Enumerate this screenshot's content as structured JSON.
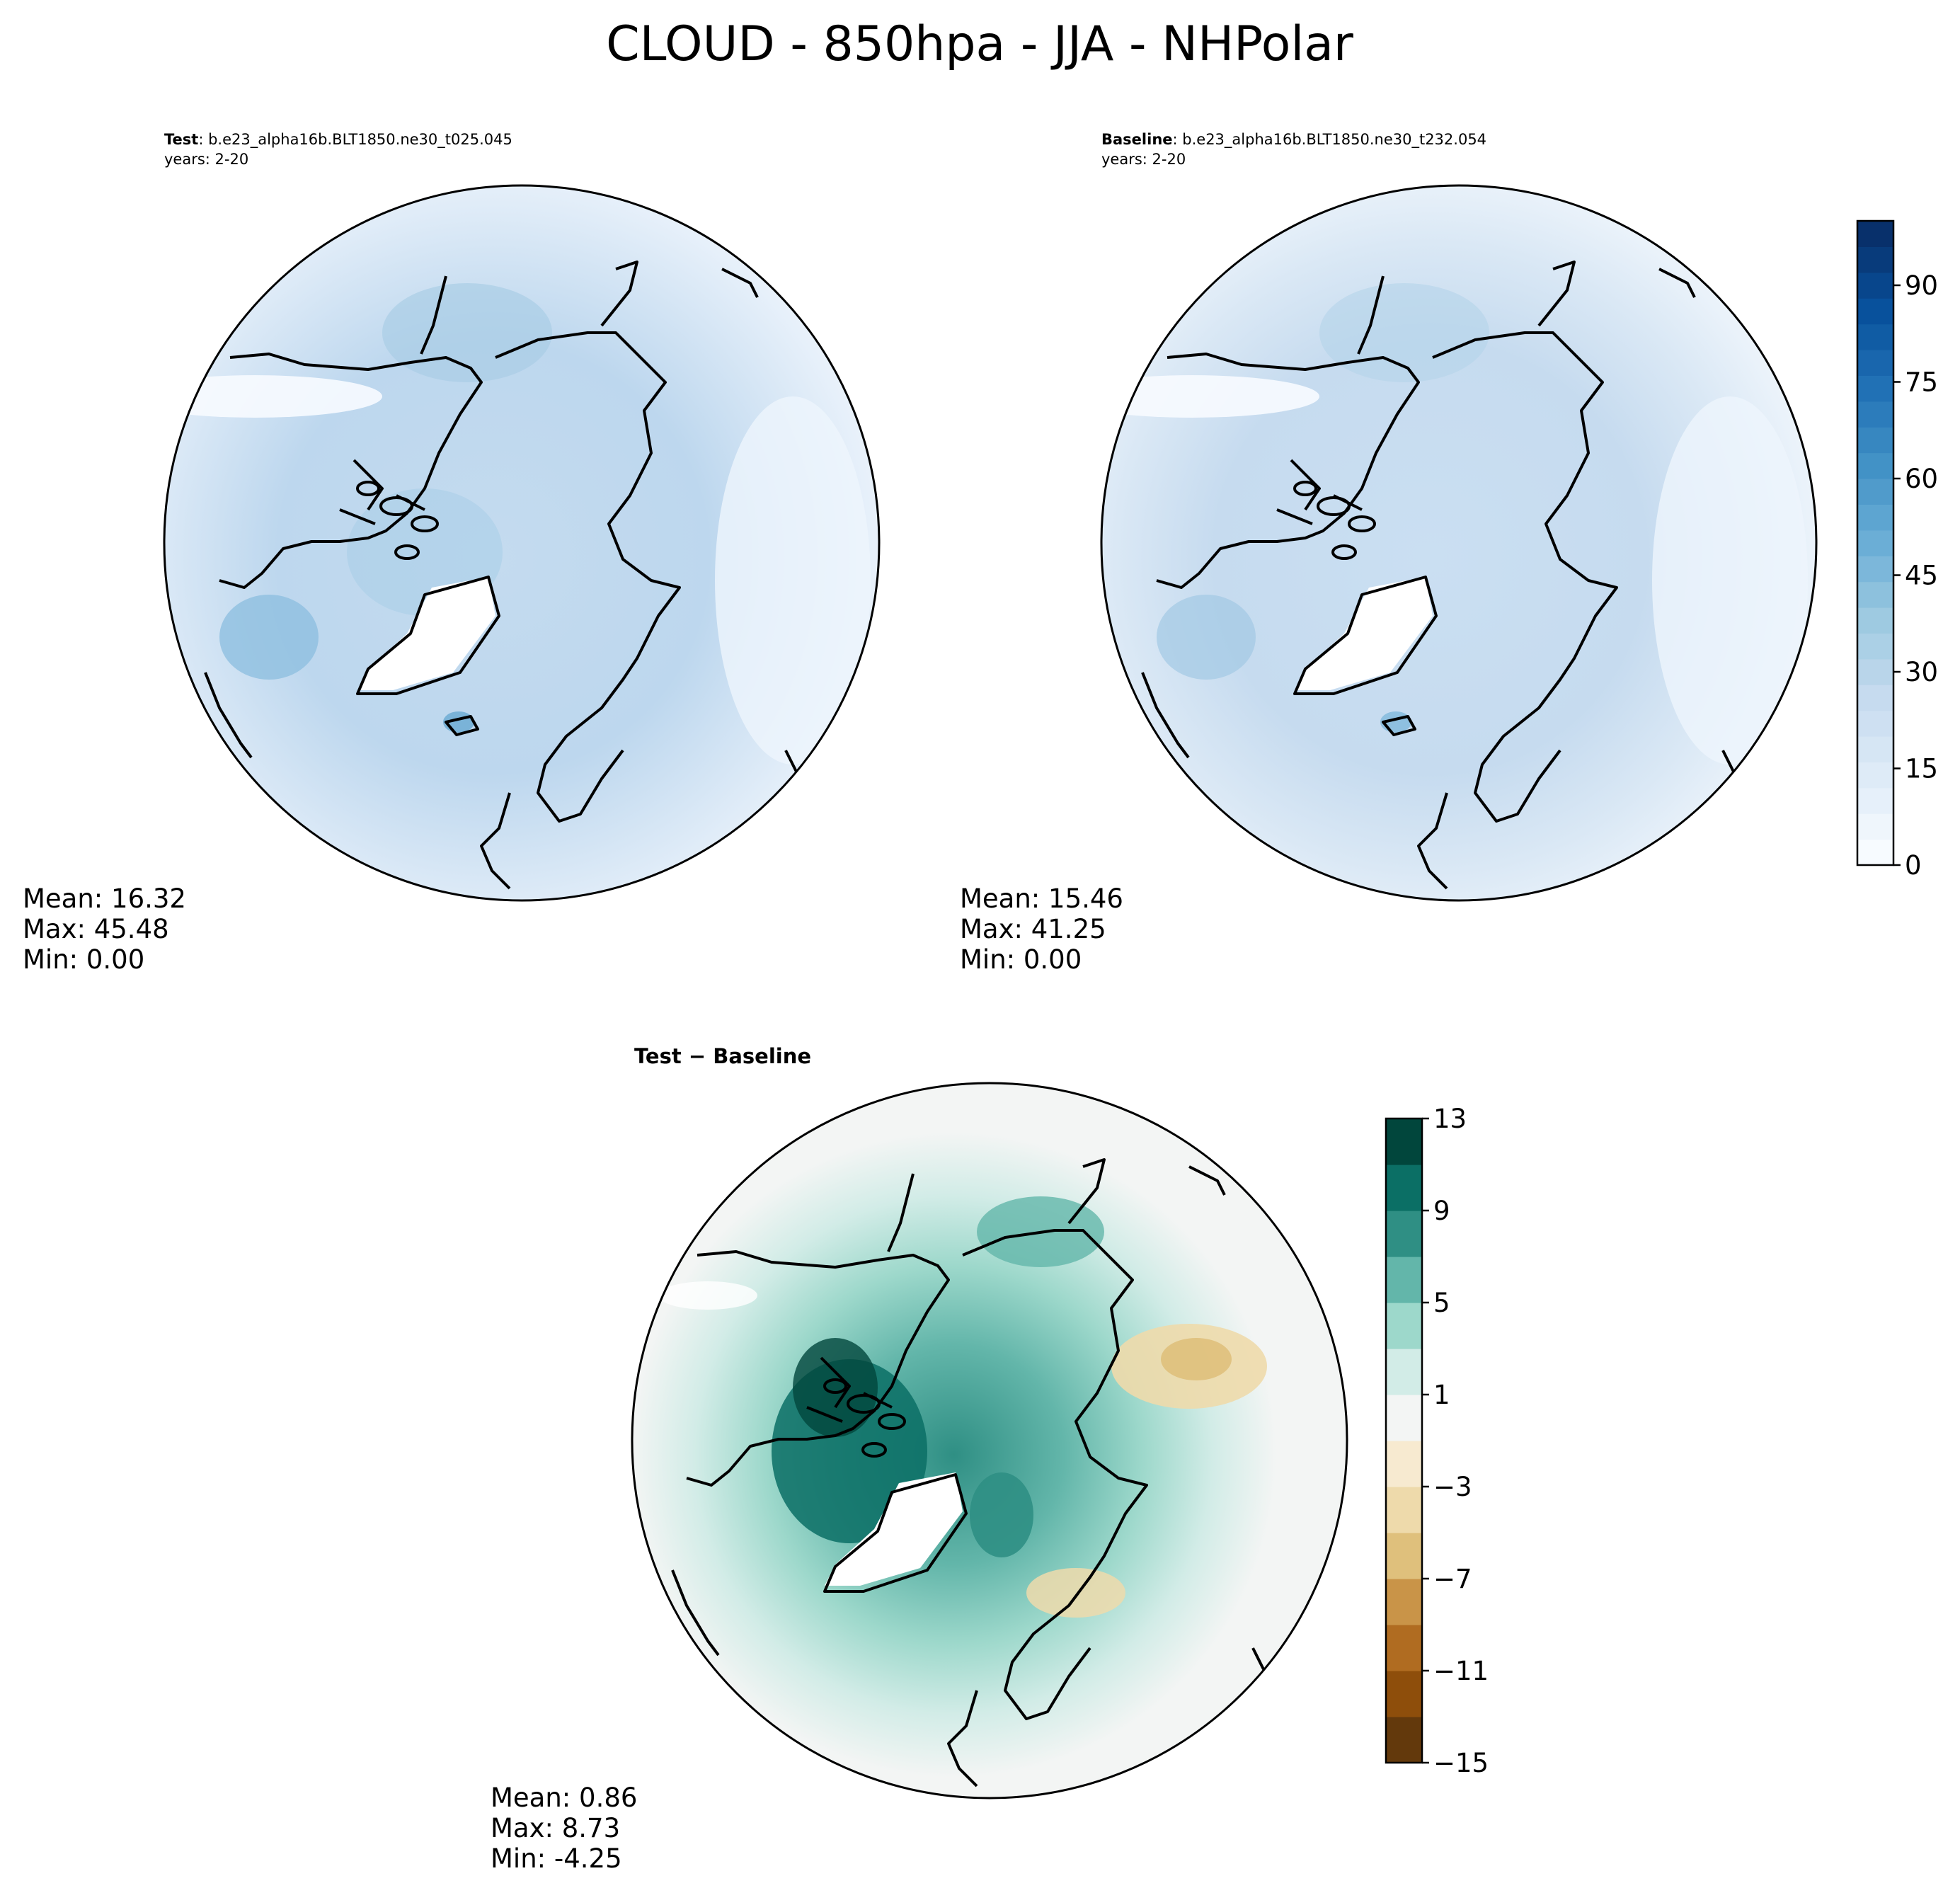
{
  "title": "CLOUD - 850hpa - JJA - NHPolar",
  "chart_data": [
    {
      "type": "heatmap",
      "projection": "north-polar-stereographic",
      "panel_label": "Test",
      "case_name": ": b.e23_alpha16b.BLT1850.ne30_t025.045",
      "years": "years: 2-20",
      "stats": {
        "mean": "Mean: 16.32",
        "max": "Max: 45.48",
        "min": "Min:  0.00"
      }
    },
    {
      "type": "heatmap",
      "projection": "north-polar-stereographic",
      "panel_label": "Baseline",
      "case_name": ": b.e23_alpha16b.BLT1850.ne30_t232.054",
      "years": "years: 2-20",
      "stats": {
        "mean": "Mean: 15.46",
        "max": "Max: 41.25",
        "min": "Min:  0.00"
      },
      "colorbar": {
        "range": [
          0,
          100
        ],
        "ticks": [
          0,
          15,
          30,
          45,
          60,
          75,
          90
        ],
        "tick_labels": [
          "0",
          "15",
          "30",
          "45",
          "60",
          "75",
          "90"
        ],
        "n_levels": 25,
        "colors": [
          "#f7fbff",
          "#deebf7",
          "#c6dbef",
          "#9ecae1",
          "#6baed6",
          "#4292c6",
          "#2171b5",
          "#08519c",
          "#08306b"
        ]
      }
    },
    {
      "type": "heatmap",
      "projection": "north-polar-stereographic",
      "panel_label": "Test − Baseline",
      "stats": {
        "mean": "Mean:  0.86",
        "max": "Max:  8.73",
        "min": "Min: -4.25"
      },
      "colorbar": {
        "range": [
          -15,
          13
        ],
        "ticks": [
          13,
          9,
          5,
          1,
          -3,
          -7,
          -11,
          -15
        ],
        "tick_labels": [
          "13",
          "9",
          "5",
          "1",
          "−3",
          "−7",
          "−11",
          "−15"
        ],
        "n_levels": 14,
        "colors": [
          "#01463c",
          "#0b6f65",
          "#2f8f84",
          "#63b6aa",
          "#9dd8cb",
          "#d2ece7",
          "#f3f5f4",
          "#f7ead0",
          "#eedaab",
          "#dfc07c",
          "#c99448",
          "#b06c21",
          "#8e4e0b",
          "#63390c"
        ]
      }
    }
  ]
}
